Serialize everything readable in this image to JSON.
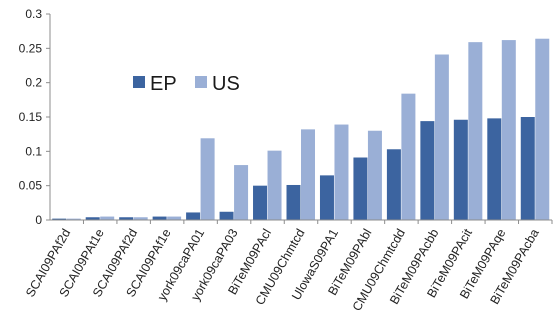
{
  "chart_data": {
    "type": "bar",
    "categories": [
      "SCAI09PAf2d",
      "SCAI09PAt1e",
      "SCAI09PAf2d",
      "SCAI09PAf1e",
      "york09caPA01",
      "york09caPA03",
      "BiTeM09PAcl",
      "CMU09Chmtcd",
      "UlowaS09PA1",
      "BiTeM09PAbl",
      "CMU09Chmtcdd",
      "BiTeM09PAcbb",
      "BiTeM09PAcit",
      "BiTeM09PAqe",
      "BiTeM09PAcba"
    ],
    "series": [
      {
        "name": "EP",
        "color": "#3c64a0",
        "values": [
          0.002,
          0.004,
          0.004,
          0.005,
          0.011,
          0.012,
          0.05,
          0.051,
          0.065,
          0.091,
          0.103,
          0.144,
          0.146,
          0.148,
          0.15
        ]
      },
      {
        "name": "US",
        "color": "#9aafd6",
        "values": [
          0.002,
          0.005,
          0.004,
          0.005,
          0.119,
          0.08,
          0.101,
          0.132,
          0.139,
          0.13,
          0.184,
          0.241,
          0.259,
          0.262,
          0.264
        ]
      }
    ],
    "ylim": [
      0,
      0.3
    ],
    "yticks": [
      "0",
      "0.05",
      "0.1",
      "0.15",
      "0.2",
      "0.25",
      "0.3"
    ],
    "ytick_values": [
      0,
      0.05,
      0.1,
      0.15,
      0.2,
      0.25,
      0.3
    ],
    "legend": [
      "EP",
      "US"
    ],
    "legend_position": "upper-left inside plot",
    "grid": false,
    "axis_color": "#8c8c8c"
  }
}
